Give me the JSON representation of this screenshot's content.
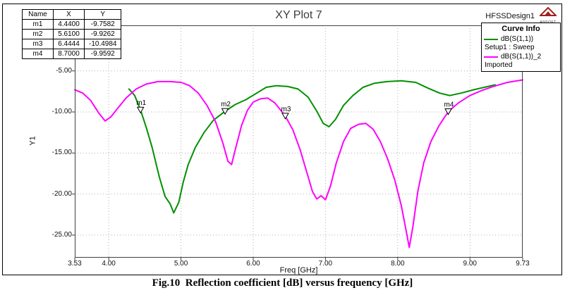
{
  "window": {
    "title": "XY Plot 7",
    "design_name": "HFSSDesign1",
    "logo_text": "ANSOFT"
  },
  "marker_table": {
    "headers": [
      "Name",
      "X",
      "Y"
    ],
    "rows": [
      [
        "m1",
        "4.4400",
        "-9.7582"
      ],
      [
        "m2",
        "5.6100",
        "-9.9262"
      ],
      [
        "m3",
        "6.4444",
        "-10.4984"
      ],
      [
        "m4",
        "8.7000",
        "-9.9592"
      ]
    ]
  },
  "legend": {
    "title": "Curve Info",
    "entries": [
      {
        "label": "dB(S(1,1))",
        "sublabel": "Setup1 : Sweep",
        "color": "#009000"
      },
      {
        "label": "dB(S(1,1))_2",
        "sublabel": "Imported",
        "color": "#ff00ff"
      }
    ]
  },
  "axes": {
    "ylabel": "Y1",
    "xlabel": "Freq [GHz]"
  },
  "caption": "Fig.10  Reflection coefficient [dB] versus frequency [GHz]",
  "colors": {
    "grid": "#b0b0b0",
    "plot_border": "#404040",
    "logo_red": "#a02020",
    "title_text": "#3d3d3d"
  },
  "chart_data": {
    "type": "line",
    "title": "XY Plot 7",
    "xlabel": "Freq [GHz]",
    "ylabel": "Y1",
    "xlim": [
      3.53,
      9.73
    ],
    "ylim": [
      -27.75,
      0.55
    ],
    "xticks": [
      3.53,
      4.0,
      5.0,
      6.0,
      7.0,
      8.0,
      9.0,
      9.73
    ],
    "xtick_labels": [
      "3.53",
      "4.00",
      "5.00",
      "6.00",
      "7.00",
      "8.00",
      "9.00",
      "9.73"
    ],
    "yticks": [
      -5,
      -10,
      -15,
      -20,
      -25
    ],
    "ytick_labels": [
      "-5.00",
      "-10.00",
      "-15.00",
      "-20.00",
      "-25.00"
    ],
    "grid": "dotted",
    "legend_position": "top-right",
    "series": [
      {
        "name": "dB(S(1,1))",
        "source": "Setup1 : Sweep",
        "color": "#009000",
        "points": [
          [
            4.28,
            -7.2
          ],
          [
            4.36,
            -8.0
          ],
          [
            4.44,
            -9.7582
          ],
          [
            4.52,
            -11.9
          ],
          [
            4.6,
            -14.3
          ],
          [
            4.7,
            -17.9
          ],
          [
            4.78,
            -20.3
          ],
          [
            4.85,
            -21.2
          ],
          [
            4.9,
            -22.3
          ],
          [
            4.97,
            -21.0
          ],
          [
            5.03,
            -18.6
          ],
          [
            5.1,
            -16.4
          ],
          [
            5.2,
            -14.3
          ],
          [
            5.32,
            -12.5
          ],
          [
            5.45,
            -11.0
          ],
          [
            5.61,
            -9.9262
          ],
          [
            5.75,
            -9.1
          ],
          [
            5.9,
            -8.5
          ],
          [
            6.05,
            -7.7
          ],
          [
            6.18,
            -7.0
          ],
          [
            6.32,
            -6.8
          ],
          [
            6.48,
            -6.9
          ],
          [
            6.62,
            -7.2
          ],
          [
            6.76,
            -8.2
          ],
          [
            6.88,
            -9.9
          ],
          [
            6.97,
            -11.4
          ],
          [
            7.05,
            -11.8
          ],
          [
            7.14,
            -10.9
          ],
          [
            7.25,
            -9.2
          ],
          [
            7.38,
            -8.0
          ],
          [
            7.52,
            -7.0
          ],
          [
            7.68,
            -6.5
          ],
          [
            7.85,
            -6.3
          ],
          [
            8.05,
            -6.2
          ],
          [
            8.25,
            -6.4
          ],
          [
            8.42,
            -7.1
          ],
          [
            8.58,
            -7.7
          ],
          [
            8.72,
            -8.0
          ],
          [
            8.88,
            -7.7
          ],
          [
            9.05,
            -7.3
          ],
          [
            9.2,
            -7.0
          ],
          [
            9.35,
            -6.7
          ]
        ]
      },
      {
        "name": "dB(S(1,1))_2",
        "source": "Imported",
        "color": "#ff00ff",
        "points": [
          [
            3.53,
            -7.3
          ],
          [
            3.64,
            -7.7
          ],
          [
            3.75,
            -8.6
          ],
          [
            3.86,
            -10.1
          ],
          [
            3.95,
            -11.1
          ],
          [
            4.03,
            -10.6
          ],
          [
            4.12,
            -9.6
          ],
          [
            4.24,
            -8.3
          ],
          [
            4.38,
            -7.2
          ],
          [
            4.52,
            -6.6
          ],
          [
            4.68,
            -6.3
          ],
          [
            4.85,
            -6.3
          ],
          [
            5.0,
            -6.4
          ],
          [
            5.12,
            -6.8
          ],
          [
            5.24,
            -7.7
          ],
          [
            5.36,
            -9.2
          ],
          [
            5.48,
            -11.2
          ],
          [
            5.58,
            -13.8
          ],
          [
            5.65,
            -16.0
          ],
          [
            5.7,
            -16.4
          ],
          [
            5.76,
            -14.3
          ],
          [
            5.84,
            -11.6
          ],
          [
            5.92,
            -9.8
          ],
          [
            6.0,
            -8.8
          ],
          [
            6.1,
            -8.4
          ],
          [
            6.2,
            -8.3
          ],
          [
            6.3,
            -8.9
          ],
          [
            6.4,
            -10.0
          ],
          [
            6.4444,
            -10.4984
          ],
          [
            6.55,
            -12.2
          ],
          [
            6.65,
            -14.6
          ],
          [
            6.74,
            -17.3
          ],
          [
            6.82,
            -19.7
          ],
          [
            6.88,
            -20.6
          ],
          [
            6.94,
            -20.2
          ],
          [
            7.0,
            -20.7
          ],
          [
            7.07,
            -19.0
          ],
          [
            7.15,
            -16.2
          ],
          [
            7.25,
            -13.6
          ],
          [
            7.35,
            -12.0
          ],
          [
            7.46,
            -11.5
          ],
          [
            7.56,
            -11.4
          ],
          [
            7.66,
            -12.1
          ],
          [
            7.76,
            -13.6
          ],
          [
            7.86,
            -15.7
          ],
          [
            7.96,
            -18.3
          ],
          [
            8.05,
            -21.4
          ],
          [
            8.12,
            -24.6
          ],
          [
            8.16,
            -26.5
          ],
          [
            8.21,
            -24.0
          ],
          [
            8.28,
            -19.6
          ],
          [
            8.36,
            -16.2
          ],
          [
            8.46,
            -13.6
          ],
          [
            8.57,
            -11.7
          ],
          [
            8.7,
            -9.9592
          ],
          [
            8.84,
            -8.9
          ],
          [
            9.0,
            -8.0
          ],
          [
            9.16,
            -7.4
          ],
          [
            9.32,
            -6.9
          ],
          [
            9.52,
            -6.4
          ],
          [
            9.73,
            -6.1
          ]
        ]
      }
    ],
    "markers": [
      {
        "name": "m1",
        "x": 4.44,
        "y": -9.7582
      },
      {
        "name": "m2",
        "x": 5.61,
        "y": -9.9262
      },
      {
        "name": "m3",
        "x": 6.4444,
        "y": -10.4984
      },
      {
        "name": "m4",
        "x": 8.7,
        "y": -9.9592
      }
    ]
  }
}
